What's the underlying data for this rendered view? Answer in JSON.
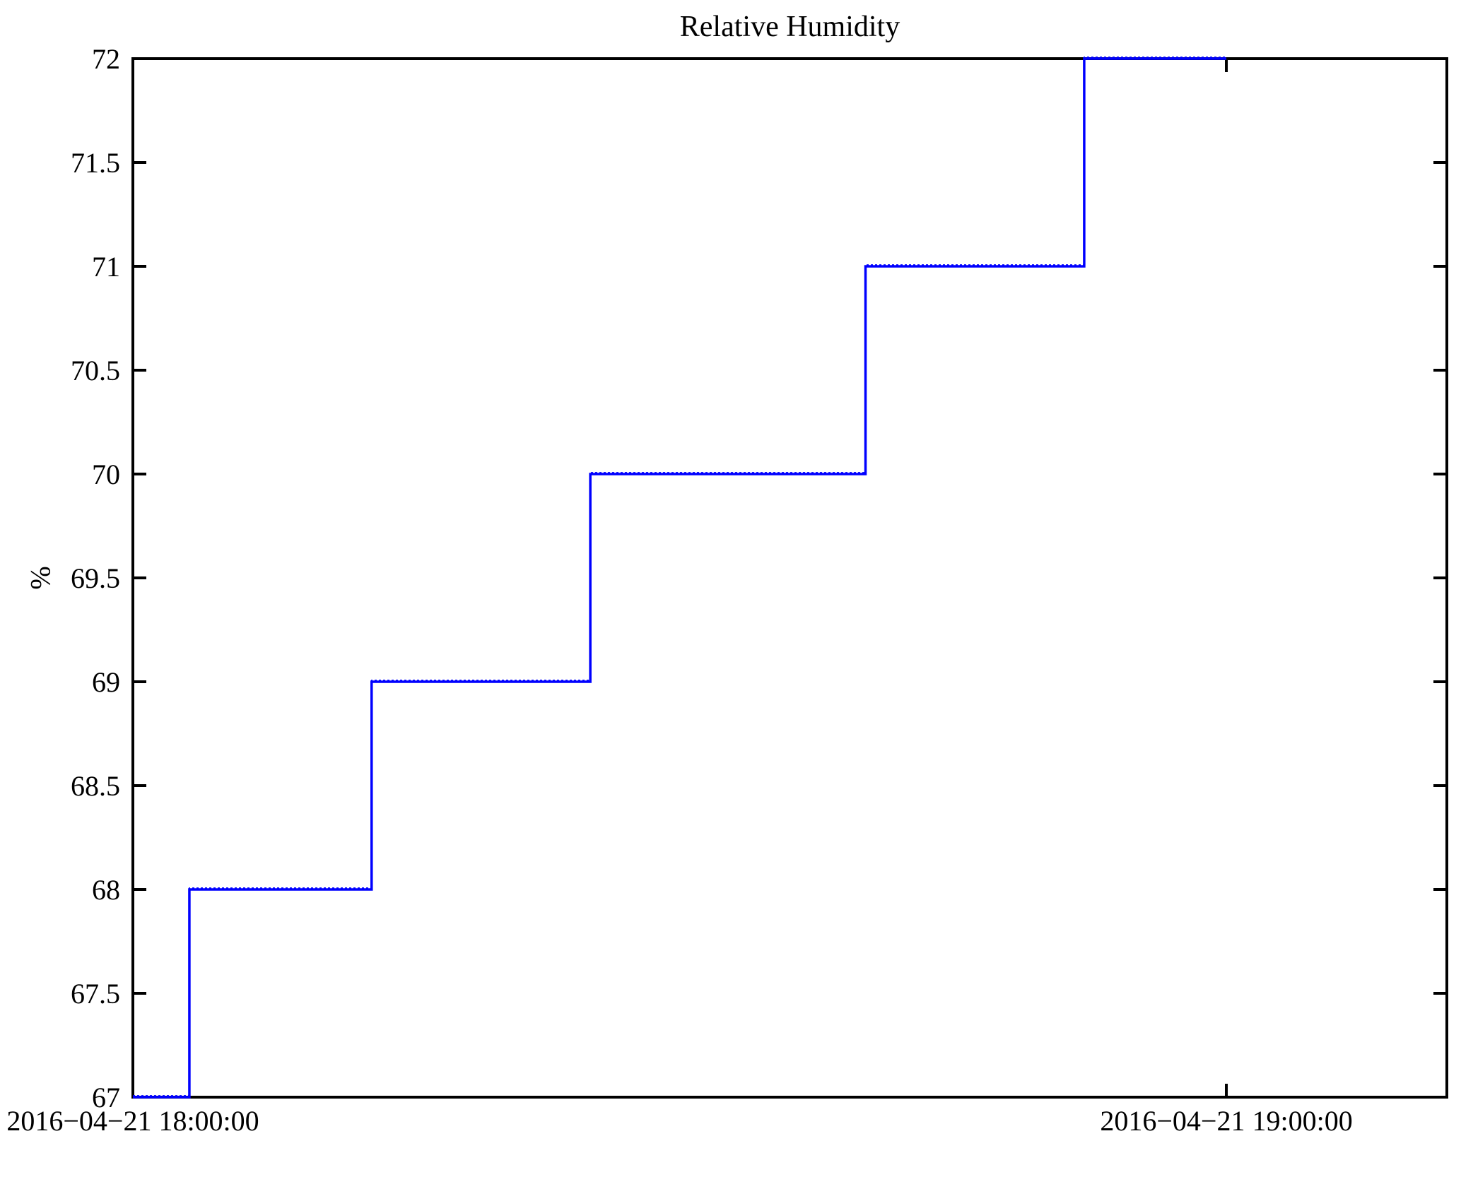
{
  "title": "Relative Humidity",
  "chart_data": {
    "type": "line",
    "subtype": "step",
    "title": "Relative Humidity",
    "xlabel": "",
    "ylabel": "%",
    "line_color": "#0000FF",
    "axis_color": "#000000",
    "background_color": "#FFFFFF",
    "grid": false,
    "legend": false,
    "box": true,
    "ylim": [
      67,
      72
    ],
    "ytick_labels": [
      "67",
      "67.5",
      "68",
      "68.5",
      "69",
      "69.5",
      "70",
      "70.5",
      "71",
      "71.5",
      "72"
    ],
    "ytick_values": [
      67,
      67.5,
      68,
      68.5,
      69,
      69.5,
      70,
      70.5,
      71,
      71.5,
      72
    ],
    "xlim_minutes": [
      0,
      72.1
    ],
    "xticks": [
      {
        "label": "2016−04−21 18:00:00",
        "minutes": 0
      },
      {
        "label": "2016−04−21 19:00:00",
        "minutes": 60
      }
    ],
    "series": [
      {
        "name": "Relative Humidity",
        "unit": "%",
        "step_points": [
          {
            "time": "18:00:00",
            "min": 0.0,
            "value": 67
          },
          {
            "time": "18:03",
            "min": 3.1,
            "value": 68
          },
          {
            "time": "18:13",
            "min": 13.1,
            "value": 69
          },
          {
            "time": "18:25",
            "min": 25.1,
            "value": 70
          },
          {
            "time": "18:40",
            "min": 40.2,
            "value": 71
          },
          {
            "time": "18:52",
            "min": 52.2,
            "value": 72
          }
        ],
        "end_time": "19:00:00",
        "end_min": 60.0,
        "end_value": 72
      }
    ]
  }
}
